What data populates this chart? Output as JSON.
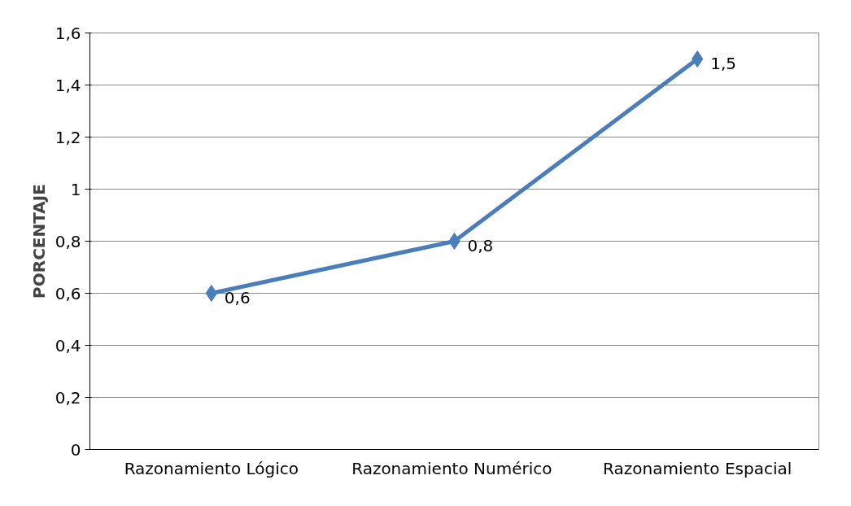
{
  "chart_data": {
    "type": "line",
    "ylabel": "PORCENTAJE",
    "categories": [
      "Razonamiento Lógico",
      "Razonamiento  Numérico",
      "Razonamiento Espacial"
    ],
    "series": [
      {
        "color": "#4a7ebb",
        "values": [
          0.6,
          0.8,
          1.5
        ],
        "value_labels": [
          "0,6",
          "0,8",
          "1,5"
        ]
      }
    ],
    "ylim": [
      0,
      1.6
    ],
    "yticks": [
      0,
      {
        "value": 0.2,
        "label": "0,2"
      },
      {
        "value": 0.4,
        "label": "0,4"
      },
      {
        "value": 0.6,
        "label": "0,6"
      },
      {
        "value": 0.8,
        "label": "0,8"
      },
      1,
      {
        "value": 1.2,
        "label": "1,2"
      },
      {
        "value": 1.4,
        "label": "1,4"
      },
      {
        "value": 1.6,
        "label": "1,6"
      }
    ],
    "grid": "y",
    "marker": "diamond",
    "line_style": "solid"
  }
}
